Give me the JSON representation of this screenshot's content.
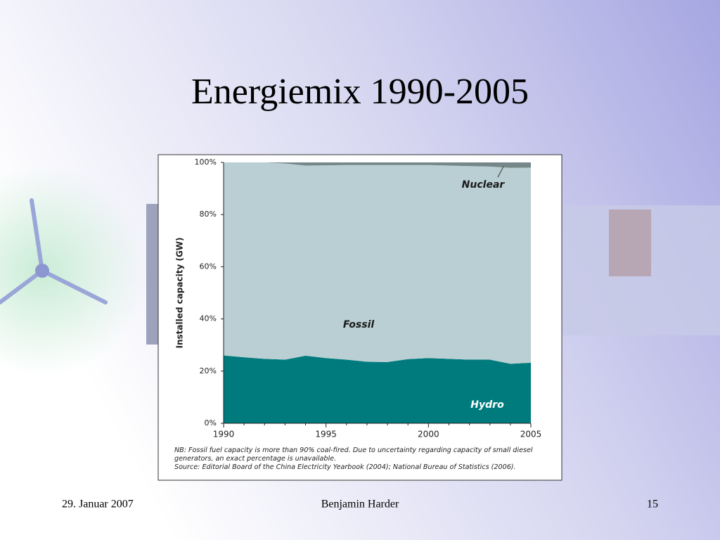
{
  "slide": {
    "title": "Energiemix 1990-2005",
    "date": "29. Januar 2007",
    "author": "Benjamin Harder",
    "page": "15"
  },
  "chart_data": {
    "type": "stacked_area",
    "y_label": "Installed capacity (GW)",
    "notes": [
      "NB: Fossil fuel capacity is more than 90% coal-fired. Due to uncertainty regarding capacity of small diesel",
      "generators, an exact percentage is unavailable.",
      "Source: Editorial Board of the China Electricity Yearbook (2004); National Bureau of Statistics (2006)."
    ],
    "x": [
      1990,
      1991,
      1992,
      1993,
      1994,
      1995,
      1996,
      1997,
      1998,
      1999,
      2000,
      2001,
      2002,
      2003,
      2004,
      2005
    ],
    "series": [
      {
        "name": "Hydro",
        "color": "#007b7d",
        "values": [
          26.0,
          25.3,
          24.7,
          24.4,
          25.9,
          25.0,
          24.4,
          23.6,
          23.5,
          24.6,
          25.0,
          24.7,
          24.4,
          24.4,
          22.8,
          23.2
        ]
      },
      {
        "name": "Fossil",
        "color": "#bacfd3",
        "values": [
          74.0,
          74.7,
          75.3,
          75.2,
          72.9,
          73.9,
          74.6,
          75.4,
          75.5,
          74.4,
          74.0,
          74.1,
          74.2,
          74.0,
          75.1,
          74.8
        ]
      },
      {
        "name": "Nuclear",
        "color": "#76878a",
        "values": [
          0,
          0,
          0,
          0.4,
          1.2,
          1.1,
          1.0,
          1.0,
          1.0,
          1.0,
          1.0,
          1.2,
          1.4,
          1.6,
          2.1,
          2.0
        ]
      }
    ],
    "xlim": [
      1990,
      2005
    ],
    "xticks": [
      1990,
      1995,
      2000,
      2005
    ],
    "ylim": [
      0,
      100
    ],
    "yticks": [
      {
        "value": 0,
        "label": "0%"
      },
      {
        "value": 20,
        "label": "20%"
      },
      {
        "value": 40,
        "label": "40%"
      },
      {
        "value": 60,
        "label": "60%"
      },
      {
        "value": 80,
        "label": "80%"
      },
      {
        "value": 100,
        "label": "100%"
      }
    ]
  }
}
